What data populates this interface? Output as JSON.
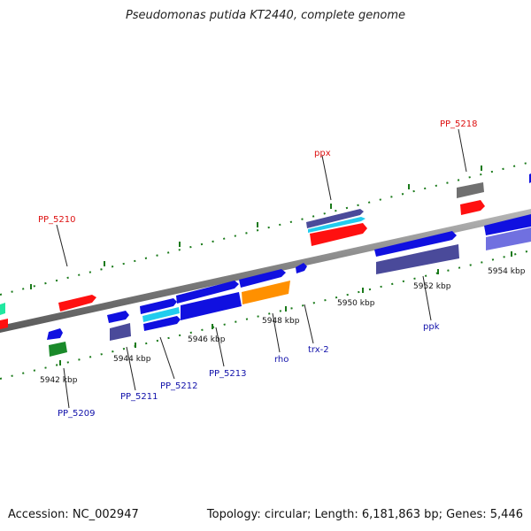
{
  "title": "Pseudomonas putida KT2440, complete genome",
  "footer": {
    "accession": "Accession: NC_002947",
    "summary": "Topology: circular; Length: 6,181,863 bp; Genes: 5,446"
  },
  "ticks": [
    "5942 kbp",
    "5944 kbp",
    "5946 kbp",
    "5948 kbp",
    "5950 kbp",
    "5952 kbp",
    "5954 kbp"
  ],
  "genes_top": [
    "PP_5210",
    "ppx",
    "PP_5218"
  ],
  "genes_bottom": [
    "PP_5209",
    "PP_5211",
    "PP_5212",
    "PP_5213",
    "rho",
    "trx-2",
    "ppk"
  ],
  "colors": {
    "backbone": "#808080",
    "gene_blue": "#1010e0",
    "gene_red": "#ff1010",
    "gene_slate": "#4a4a9a",
    "gene_cyan": "#22ccee",
    "gene_orange": "#ff9000",
    "gene_green": "#1a8a2a",
    "gene_grey": "#707070",
    "gene_lavender": "#7070e0",
    "label_top": "#dd1111",
    "label_bottom": "#1111aa",
    "dots": "#1a7a1a"
  }
}
